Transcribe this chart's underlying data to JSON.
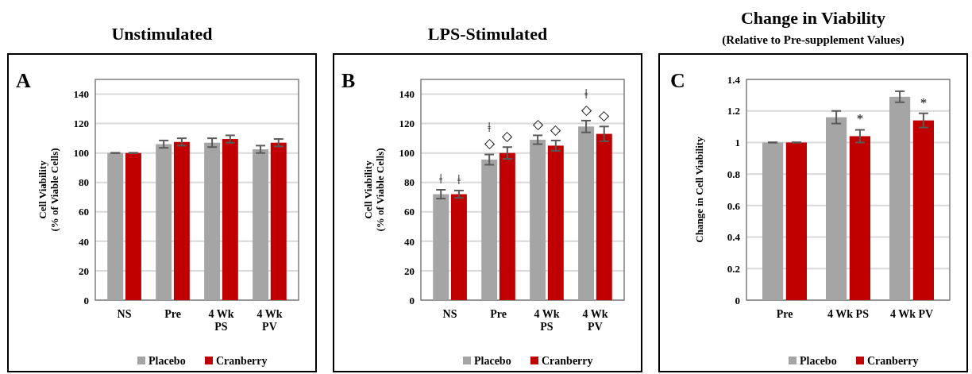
{
  "chart_data": [
    {
      "type": "bar",
      "title": "Unstimulated",
      "subtitle": "A",
      "ylabel": "Cell Viability\n(% of Viable Cells)",
      "categories": [
        "NS",
        "Pre",
        "4 Wk\nPS",
        "4 Wk\nPV"
      ],
      "ylim": [
        0,
        150
      ],
      "yticks": [
        0,
        20,
        40,
        60,
        80,
        100,
        120,
        140
      ],
      "grid": "y",
      "legend": "bottom",
      "series": [
        {
          "name": "Placebo",
          "color": "#a5a5a5",
          "values": [
            100,
            106,
            107,
            102.5
          ],
          "errors": [
            0,
            2.5,
            3,
            2.5
          ]
        },
        {
          "name": "Cranberry",
          "color": "#c00000",
          "values": [
            100,
            107.5,
            109.5,
            107
          ],
          "errors": [
            0,
            2.5,
            2.5,
            2.5
          ]
        }
      ]
    },
    {
      "type": "bar",
      "title": "LPS-Stimulated",
      "subtitle": "B",
      "ylabel": "Cell Viability\n(% of Viable Cells)",
      "categories": [
        "NS",
        "Pre",
        "4 Wk\nPS",
        "4 Wk\nPV"
      ],
      "ylim": [
        0,
        150
      ],
      "yticks": [
        0,
        20,
        40,
        60,
        80,
        100,
        120,
        140
      ],
      "grid": "y",
      "legend": "bottom",
      "series": [
        {
          "name": "Placebo",
          "color": "#a5a5a5",
          "values": [
            72,
            95.5,
            109,
            118
          ],
          "errors": [
            3,
            3.5,
            3,
            4
          ]
        },
        {
          "name": "Cranberry",
          "color": "#c00000",
          "values": [
            72,
            100,
            105,
            113
          ],
          "errors": [
            2.5,
            4,
            3.5,
            5
          ]
        }
      ],
      "annotations": [
        "ǂ",
        "ǂ",
        "◇",
        "ǂ",
        "◇",
        "◇",
        "◇",
        "◇",
        "ǂ",
        "◇"
      ]
    },
    {
      "type": "bar",
      "title": "Change in Viability",
      "subtitle": "(Relative to Pre-supplement Values)",
      "ylabel": "Change in Cell Viability",
      "categories": [
        "Pre",
        "4 Wk PS",
        "4 Wk PV"
      ],
      "ylim": [
        0,
        1.4
      ],
      "yticks": [
        0,
        0.2,
        0.4,
        0.6,
        0.8,
        1,
        1.2,
        1.4
      ],
      "grid": "y",
      "legend": "bottom",
      "series": [
        {
          "name": "Placebo",
          "color": "#a5a5a5",
          "values": [
            1,
            1.16,
            1.29
          ],
          "errors": [
            0,
            0.04,
            0.035
          ]
        },
        {
          "name": "Cranberry",
          "color": "#c00000",
          "values": [
            1,
            1.04,
            1.14
          ],
          "errors": [
            0,
            0.04,
            0.045
          ]
        }
      ],
      "annotations": [
        "C",
        {
          "text": "*",
          "x": "4 Wk PS",
          "y": 1.08
        },
        {
          "text": "*",
          "x": "4 Wk PV",
          "y": 1.185
        }
      ]
    }
  ]
}
